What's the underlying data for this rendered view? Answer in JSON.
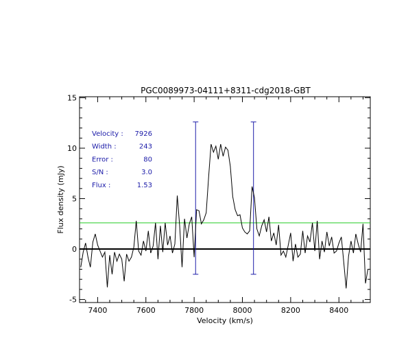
{
  "chart_data": {
    "type": "line",
    "title": "PGC0089973-04111+8311-cdg2018-GBT",
    "xlabel": "Velocity (km/s)",
    "ylabel": "Flux density (mJy)",
    "xlim": [
      7325,
      8530
    ],
    "ylim": [
      -5.3,
      15.1
    ],
    "x_ticks": [
      7400,
      7600,
      7800,
      8000,
      8200,
      8400
    ],
    "y_ticks": [
      -5,
      0,
      5,
      10,
      15
    ],
    "zero_line": 0,
    "rms_line": 2.6,
    "markers": [
      {
        "x": 7806,
        "y_bottom": -2.5,
        "y_top": 12.6
      },
      {
        "x": 8046,
        "y_bottom": -2.5,
        "y_top": 12.6
      }
    ],
    "info": [
      {
        "label": "Velocity :",
        "value": "7926"
      },
      {
        "label": "Width   :",
        "value": "243"
      },
      {
        "label": "Error   :",
        "value": "80"
      },
      {
        "label": "S/N     :",
        "value": "3.0"
      },
      {
        "label": "Flux    :",
        "value": "1.53"
      }
    ],
    "spectrum": {
      "x": [
        7330,
        7340,
        7350,
        7360,
        7370,
        7380,
        7390,
        7400,
        7410,
        7420,
        7430,
        7440,
        7450,
        7460,
        7470,
        7480,
        7490,
        7500,
        7510,
        7520,
        7530,
        7540,
        7550,
        7560,
        7570,
        7580,
        7590,
        7600,
        7610,
        7620,
        7630,
        7640,
        7650,
        7660,
        7670,
        7680,
        7690,
        7700,
        7710,
        7720,
        7730,
        7740,
        7750,
        7760,
        7770,
        7780,
        7790,
        7800,
        7810,
        7820,
        7830,
        7840,
        7850,
        7860,
        7870,
        7880,
        7890,
        7900,
        7910,
        7920,
        7930,
        7940,
        7950,
        7960,
        7970,
        7980,
        7990,
        8000,
        8010,
        8020,
        8030,
        8040,
        8050,
        8060,
        8070,
        8080,
        8090,
        8100,
        8110,
        8120,
        8130,
        8140,
        8150,
        8160,
        8170,
        8180,
        8190,
        8200,
        8210,
        8220,
        8230,
        8240,
        8250,
        8260,
        8270,
        8280,
        8290,
        8300,
        8310,
        8320,
        8330,
        8340,
        8350,
        8360,
        8370,
        8380,
        8390,
        8400,
        8410,
        8420,
        8430,
        8440,
        8450,
        8460,
        8470,
        8480,
        8490,
        8500,
        8510,
        8520
      ],
      "y": [
        -1.8,
        -0.3,
        0.6,
        -0.8,
        -1.8,
        0.7,
        1.5,
        0.4,
        -0.2,
        -0.8,
        -0.3,
        -3.8,
        -0.6,
        -2.5,
        -0.3,
        -1.2,
        -0.5,
        -1.0,
        -3.2,
        -0.5,
        -1.2,
        -0.8,
        0.2,
        2.8,
        -0.2,
        -0.6,
        0.8,
        -0.2,
        1.8,
        -0.4,
        0.3,
        2.6,
        -1.0,
        2.3,
        -0.3,
        2.6,
        0.4,
        1.3,
        -0.4,
        0.5,
        5.3,
        2.3,
        -1.8,
        3.0,
        1.1,
        2.5,
        3.2,
        -0.8,
        3.9,
        3.8,
        2.5,
        2.9,
        3.6,
        7.1,
        10.4,
        9.6,
        10.2,
        8.9,
        10.4,
        9.2,
        10.1,
        9.8,
        8.2,
        5.2,
        3.9,
        3.3,
        3.4,
        2.1,
        1.7,
        1.5,
        1.8,
        6.2,
        5.1,
        2.0,
        1.3,
        2.3,
        2.9,
        1.7,
        3.2,
        0.8,
        1.6,
        0.4,
        2.4,
        -0.6,
        -0.2,
        -0.8,
        0.4,
        1.6,
        -1.2,
        0.5,
        -0.8,
        -0.5,
        1.8,
        -0.4,
        1.3,
        0.7,
        2.6,
        -0.2,
        2.8,
        -1.0,
        0.8,
        -0.3,
        1.7,
        0.3,
        1.2,
        -0.4,
        -0.2,
        0.6,
        1.2,
        -1.3,
        -3.9,
        -0.7,
        0.8,
        -0.4,
        1.5,
        0.5,
        -0.3,
        2.5,
        -3.4,
        -2.0
      ]
    }
  }
}
